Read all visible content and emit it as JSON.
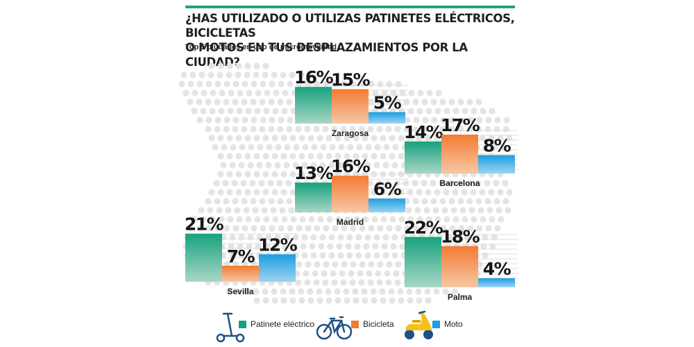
{
  "header": {
    "title_line1": "¿HAS UTILIZADO O UTILIZAS PATINETES ELÉCTRICOS, BICICLETAS",
    "title_line2": "O MOTOS EN TUS DESPLAZAMIENTOS POR LA CIUDAD?",
    "subtitle": "Top 5 ciudades en uso de micromovilidad"
  },
  "colors": {
    "accent": "#1fa37f",
    "patinete": "#17a27e",
    "bicicleta": "#f27b32",
    "moto": "#1c9ee2",
    "map_dots": "#e4e4e4"
  },
  "legend": [
    {
      "label": "Patinete eléctrico",
      "icon": "scooter-icon",
      "color": "#17a27e"
    },
    {
      "label": "Bicicleta",
      "icon": "bicycle-icon",
      "color": "#f27b32"
    },
    {
      "label": "Moto",
      "icon": "motorbike-icon",
      "color": "#1c9ee2"
    }
  ],
  "chart_data": {
    "type": "bar",
    "title": "¿HAS UTILIZADO O UTILIZAS PATINETES ELÉCTRICOS, BICICLETAS O MOTOS EN TUS DESPLAZAMIENTOS POR LA CIUDAD?",
    "subtitle": "Top 5 ciudades en uso de micromovilidad",
    "unit": "%",
    "series_names": [
      "Patinete eléctrico",
      "Bicicleta",
      "Moto"
    ],
    "cities": [
      {
        "name": "Zaragosa",
        "values": [
          16,
          15,
          5
        ]
      },
      {
        "name": "Barcelona",
        "values": [
          14,
          17,
          8
        ]
      },
      {
        "name": "Madrid",
        "values": [
          13,
          16,
          6
        ]
      },
      {
        "name": "Sevilla",
        "values": [
          21,
          7,
          12
        ]
      },
      {
        "name": "Palma",
        "values": [
          22,
          18,
          4
        ]
      }
    ]
  }
}
